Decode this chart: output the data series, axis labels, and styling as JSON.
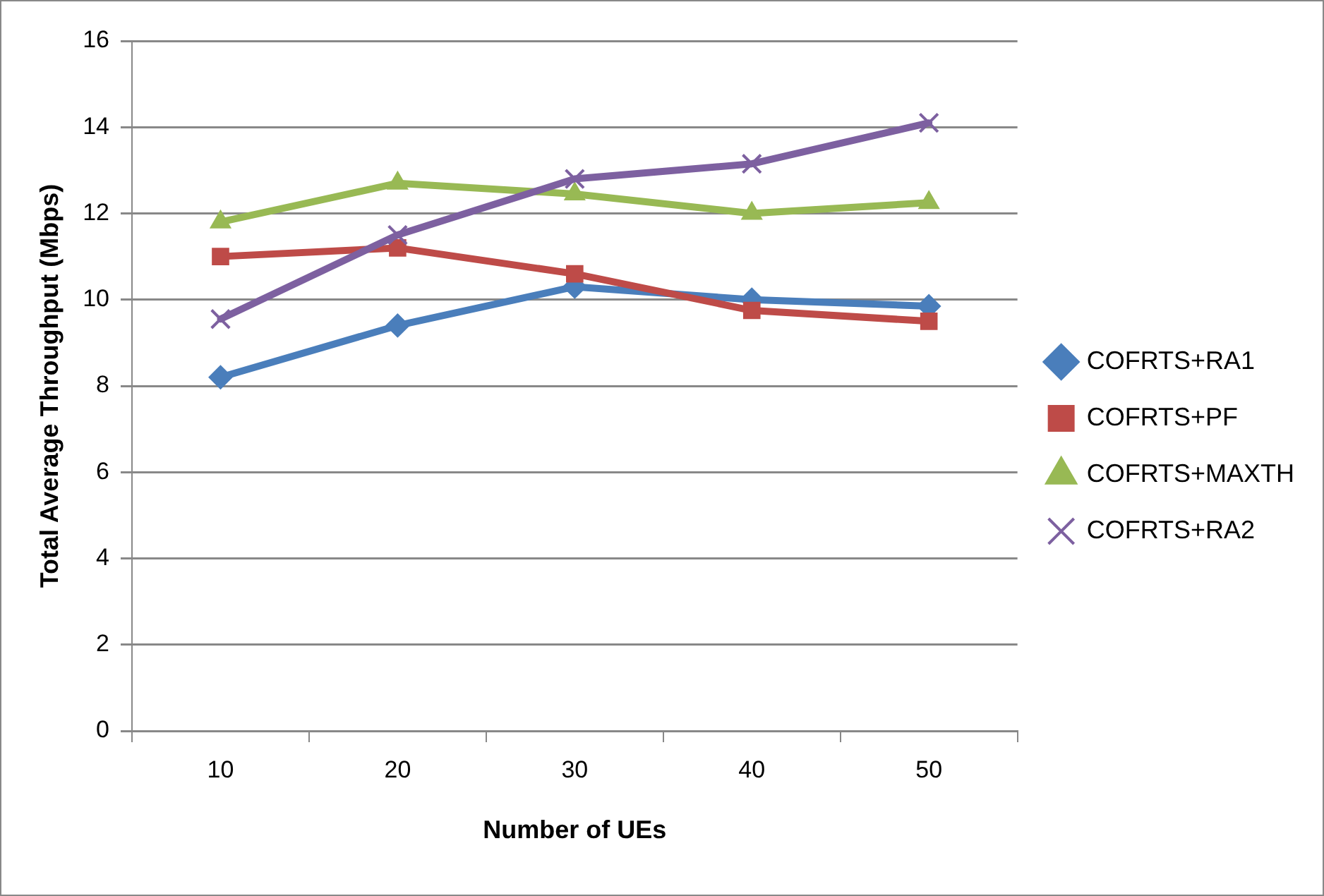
{
  "chart_data": {
    "type": "line",
    "xlabel": "Number of UEs",
    "ylabel": "Total Average Throughput (Mbps)",
    "categories": [
      "10",
      "20",
      "30",
      "40",
      "50"
    ],
    "series": [
      {
        "name": "COFRTS+RA1",
        "color": "#4a7ebb",
        "marker": "diamond",
        "values": [
          8.2,
          9.4,
          10.3,
          10.0,
          9.85
        ]
      },
      {
        "name": "COFRTS+PF",
        "color": "#be4b48",
        "marker": "square",
        "values": [
          11.0,
          11.2,
          10.6,
          9.75,
          9.5
        ]
      },
      {
        "name": "COFRTS+MAXTH",
        "color": "#98b954",
        "marker": "triangle",
        "values": [
          11.8,
          12.7,
          12.45,
          12.0,
          12.25
        ]
      },
      {
        "name": "COFRTS+RA2",
        "color": "#7d60a0",
        "marker": "cross",
        "values": [
          9.55,
          11.5,
          12.8,
          13.15,
          14.1
        ]
      }
    ],
    "ylim": [
      0,
      16
    ],
    "yticks": [
      0,
      2,
      4,
      6,
      8,
      10,
      12,
      14,
      16
    ],
    "grid": "y",
    "legend": "right",
    "line_style": "solid"
  }
}
